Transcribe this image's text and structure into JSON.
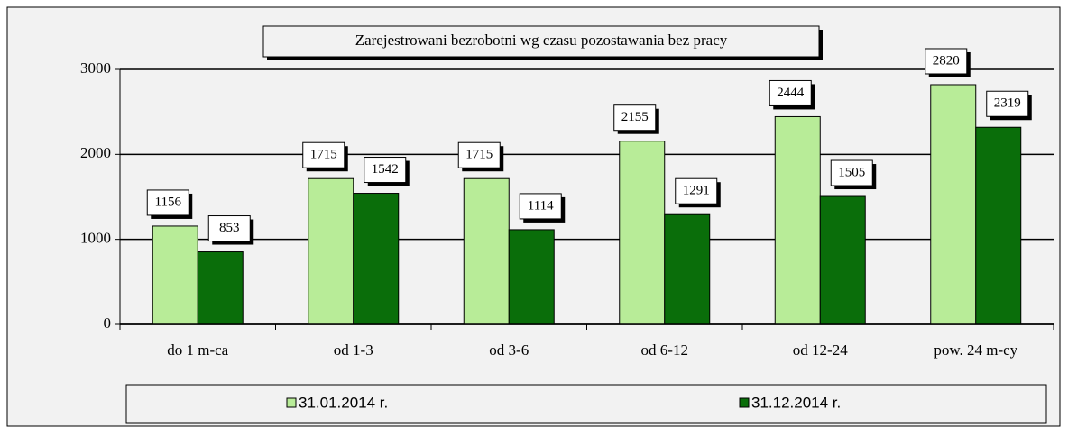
{
  "chart_data": {
    "type": "bar",
    "title": "Zarejestrowani bezrobotni wg czasu pozostawania bez pracy",
    "categories": [
      "do 1 m-ca",
      "od 1-3",
      "od 3-6",
      "od 6-12",
      "od 12-24",
      "pow. 24 m-cy"
    ],
    "series": [
      {
        "name": "31.01.2014 r.",
        "color": "#b8ec98",
        "values": [
          1156,
          1715,
          1715,
          2155,
          2444,
          2820
        ]
      },
      {
        "name": "31.12.2014 r.",
        "color": "#0a6e0a",
        "values": [
          853,
          1542,
          1114,
          1291,
          1505,
          2319
        ]
      }
    ],
    "ylim": [
      0,
      3000
    ],
    "yticks": [
      0,
      1000,
      2000,
      3000
    ],
    "grid": true,
    "legend": "bottom"
  }
}
